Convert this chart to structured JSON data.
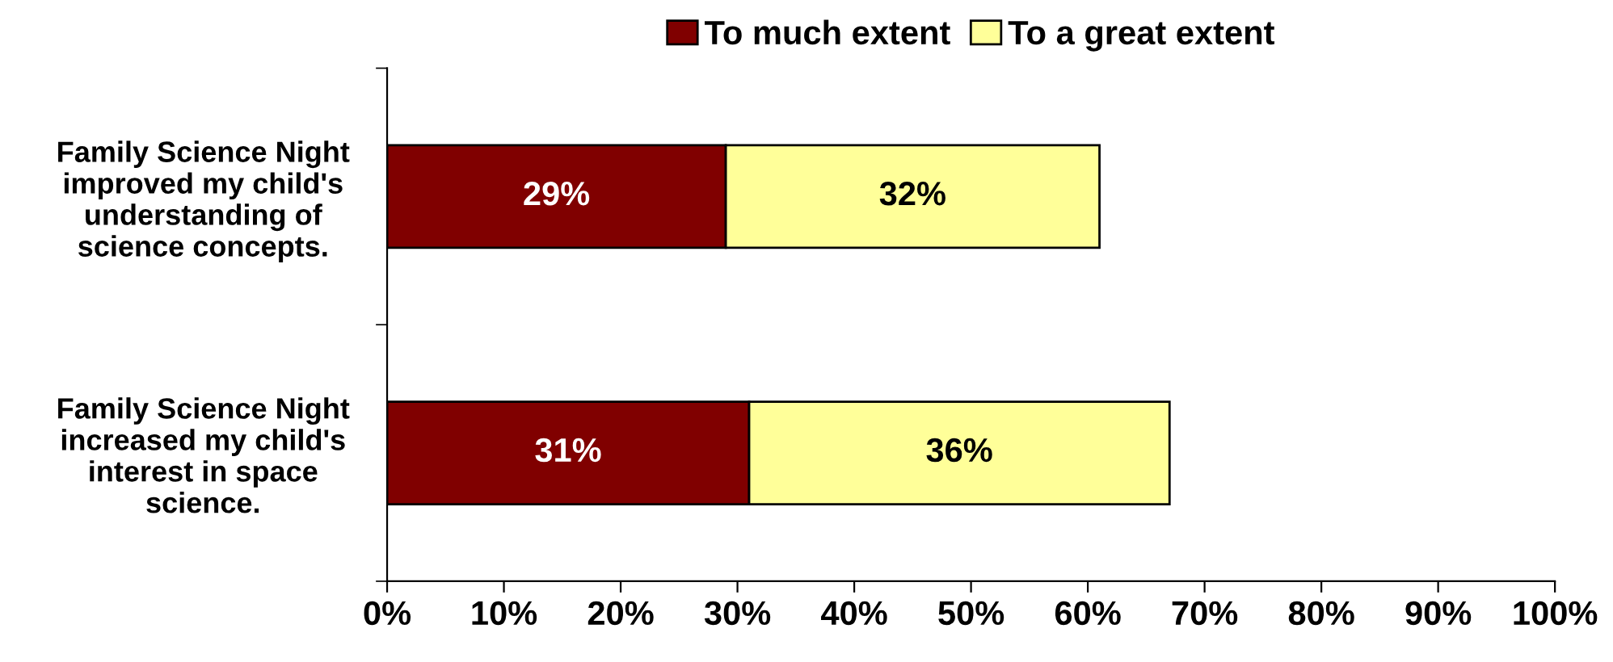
{
  "chart_data": {
    "type": "bar",
    "orientation": "horizontal",
    "stacked": true,
    "categories": [
      "Family Science Night\nimproved my child's\nunderstanding of\nscience concepts.",
      "Family Science Night\nincreased my child's\ninterest in space\nscience."
    ],
    "series": [
      {
        "name": "To much extent",
        "color": "#800000",
        "values": [
          29,
          31
        ],
        "value_labels": [
          "29%",
          "31%"
        ]
      },
      {
        "name": "To a great extent",
        "color": "#ffff99",
        "values": [
          32,
          36
        ],
        "value_labels": [
          "32%",
          "36%"
        ]
      }
    ],
    "xlim": [
      0,
      100
    ],
    "xticks": [
      {
        "value": 0,
        "label": "0%"
      },
      {
        "value": 10,
        "label": "10%"
      },
      {
        "value": 20,
        "label": "20%"
      },
      {
        "value": 30,
        "label": "30%"
      },
      {
        "value": 40,
        "label": "40%"
      },
      {
        "value": 50,
        "label": "50%"
      },
      {
        "value": 60,
        "label": "60%"
      },
      {
        "value": 70,
        "label": "70%"
      },
      {
        "value": 80,
        "label": "80%"
      },
      {
        "value": 90,
        "label": "90%"
      },
      {
        "value": 100,
        "label": "100%"
      }
    ],
    "grid": false,
    "legend": "top"
  }
}
